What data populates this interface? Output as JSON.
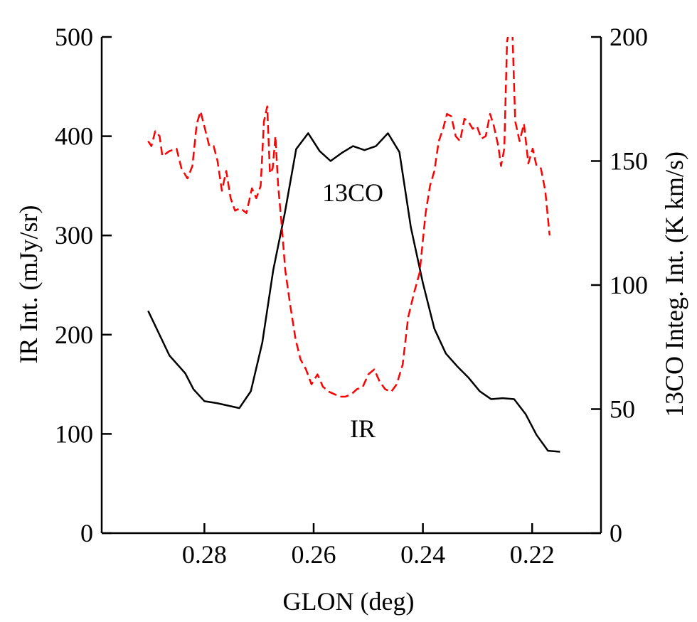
{
  "chart_data": {
    "type": "line",
    "xlabel": "GLON (deg)",
    "ylabel": "IR Int.  (mJy/sr)",
    "y2label": "13CO Integ. Int. (K km/s)",
    "annotations": [
      "13CO",
      "IR"
    ],
    "xlim": [
      0.2988,
      0.2074
    ],
    "xticks": [
      0.28,
      0.26,
      0.24,
      0.22
    ],
    "ylim": [
      0,
      500
    ],
    "yticks": [
      0,
      100,
      200,
      300,
      400,
      500
    ],
    "y2lim": [
      0,
      200
    ],
    "y2ticks": [
      0,
      50,
      100,
      150,
      200
    ],
    "series": [
      {
        "color": "#000000",
        "dash": false,
        "x": [
          0.2903,
          0.2864,
          0.2835,
          0.282,
          0.28,
          0.2777,
          0.2736,
          0.2715,
          0.2694,
          0.2674,
          0.2653,
          0.2632,
          0.261,
          0.2589,
          0.2569,
          0.2549,
          0.2528,
          0.2507,
          0.2486,
          0.2464,
          0.2443,
          0.2422,
          0.24,
          0.2379,
          0.2358,
          0.2337,
          0.2317,
          0.2296,
          0.2275,
          0.2254,
          0.2233,
          0.2212,
          0.2192,
          0.2171,
          0.2149
        ],
        "values": [
          224,
          179,
          161,
          145,
          133,
          131,
          126,
          143,
          192,
          265,
          322,
          387,
          403,
          385,
          375,
          383,
          390,
          386,
          390,
          403,
          384,
          308,
          252,
          206,
          181,
          168,
          157,
          143,
          135,
          136,
          135,
          120,
          99,
          83,
          82
        ]
      },
      {
        "color": "#ff0000",
        "dash": true,
        "axis": "y2",
        "x": [
          0.2903,
          0.2897,
          0.289,
          0.2882,
          0.2877,
          0.2864,
          0.2851,
          0.2842,
          0.2831,
          0.2822,
          0.2814,
          0.2807,
          0.2799,
          0.2791,
          0.2783,
          0.2776,
          0.2768,
          0.276,
          0.2752,
          0.2744,
          0.2734,
          0.2723,
          0.2713,
          0.2705,
          0.2697,
          0.2691,
          0.2685,
          0.268,
          0.2675,
          0.267,
          0.2665,
          0.2658,
          0.2652,
          0.2643,
          0.2633,
          0.2624,
          0.2614,
          0.2604,
          0.2593,
          0.2583,
          0.2572,
          0.2562,
          0.2552,
          0.2542,
          0.2531,
          0.2521,
          0.251,
          0.25,
          0.2489,
          0.2479,
          0.2469,
          0.2458,
          0.2448,
          0.2437,
          0.2427,
          0.2416,
          0.2406,
          0.2395,
          0.2387,
          0.2379,
          0.2371,
          0.2363,
          0.2356,
          0.2348,
          0.234,
          0.2332,
          0.2324,
          0.2317,
          0.2309,
          0.2301,
          0.2293,
          0.2285,
          0.2277,
          0.227,
          0.2262,
          0.2257,
          0.2251,
          0.2246,
          0.2241,
          0.2236,
          0.2231,
          0.2223,
          0.2215,
          0.2207,
          0.2199,
          0.2192,
          0.2184,
          0.2176,
          0.2168
        ],
        "values": [
          158,
          156,
          162,
          160,
          152,
          154,
          155,
          147,
          143,
          148,
          165,
          170,
          163,
          156,
          156,
          150,
          138,
          146,
          135,
          130,
          131,
          129,
          139,
          135,
          140,
          166,
          172,
          145,
          147,
          160,
          140,
          123,
          106,
          92,
          78,
          70,
          66,
          60,
          64,
          59,
          57,
          56,
          55,
          55,
          56,
          58,
          59,
          64,
          66,
          61,
          58,
          57,
          60,
          68,
          87,
          97,
          105,
          129,
          140,
          146,
          158,
          163,
          169,
          168,
          160,
          158,
          167,
          166,
          163,
          164,
          159,
          160,
          169,
          164,
          156,
          148,
          155,
          198,
          205,
          201,
          166,
          158,
          165,
          149,
          155,
          148,
          147,
          138,
          120
        ]
      }
    ]
  }
}
